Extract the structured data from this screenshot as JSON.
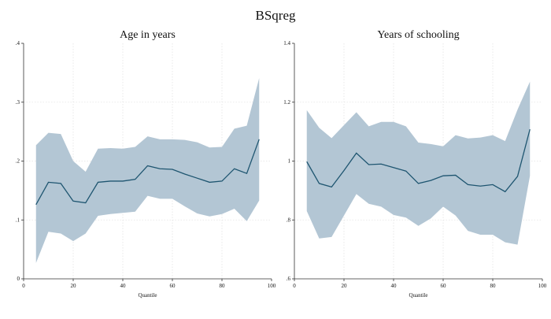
{
  "figure": {
    "title": "BSqreg"
  },
  "chart_data": [
    {
      "type": "area",
      "title": "Age in years",
      "xlabel": "Quantile",
      "ylabel": "",
      "xlim": [
        0,
        100
      ],
      "ylim": [
        0,
        0.4
      ],
      "xticks": [
        0,
        20,
        40,
        60,
        80,
        100
      ],
      "yticks": [
        0,
        0.1,
        0.2,
        0.3,
        0.4
      ],
      "xtick_labels": [
        "0",
        "20",
        "40",
        "60",
        "80",
        "100"
      ],
      "ytick_labels": [
        "0",
        ".1",
        ".2",
        ".3",
        ".4"
      ],
      "grid": true,
      "band_color": "#b3c6d4",
      "line_color": "#1e5570",
      "x": [
        5,
        10,
        15,
        20,
        25,
        30,
        35,
        40,
        45,
        50,
        55,
        60,
        65,
        70,
        75,
        80,
        85,
        90,
        95
      ],
      "series": [
        {
          "values": [
            0.126,
            0.164,
            0.162,
            0.132,
            0.129,
            0.164,
            0.166,
            0.166,
            0.169,
            0.192,
            0.187,
            0.186,
            0.178,
            0.171,
            0.164,
            0.166,
            0.187,
            0.179,
            0.237
          ]
        }
      ],
      "band_upper": [
        0.227,
        0.248,
        0.246,
        0.2,
        0.182,
        0.221,
        0.222,
        0.221,
        0.224,
        0.242,
        0.237,
        0.237,
        0.236,
        0.232,
        0.223,
        0.224,
        0.255,
        0.26,
        0.341
      ],
      "band_lower": [
        0.027,
        0.08,
        0.077,
        0.064,
        0.077,
        0.107,
        0.11,
        0.112,
        0.114,
        0.141,
        0.136,
        0.136,
        0.123,
        0.111,
        0.106,
        0.11,
        0.119,
        0.098,
        0.133
      ]
    },
    {
      "type": "area",
      "title": "Years of schooling",
      "xlabel": "Quantile",
      "ylabel": "",
      "xlim": [
        0,
        100
      ],
      "ylim": [
        0.6,
        1.4
      ],
      "xticks": [
        0,
        20,
        40,
        60,
        80,
        100
      ],
      "yticks": [
        0.6,
        0.8,
        1.0,
        1.2,
        1.4
      ],
      "xtick_labels": [
        "0",
        "20",
        "40",
        "60",
        "80",
        "100"
      ],
      "ytick_labels": [
        ".6",
        ".8",
        "1",
        "1.2",
        "1.4"
      ],
      "grid": true,
      "band_color": "#b3c6d4",
      "line_color": "#1e5570",
      "x": [
        5,
        10,
        15,
        20,
        25,
        30,
        35,
        40,
        45,
        50,
        55,
        60,
        65,
        70,
        75,
        80,
        85,
        90,
        95
      ],
      "series": [
        {
          "values": [
            0.998,
            0.924,
            0.912,
            0.968,
            1.027,
            0.988,
            0.99,
            0.978,
            0.966,
            0.924,
            0.934,
            0.95,
            0.952,
            0.92,
            0.915,
            0.92,
            0.896,
            0.948,
            1.108
          ]
        }
      ],
      "band_upper": [
        1.173,
        1.113,
        1.078,
        1.122,
        1.166,
        1.118,
        1.133,
        1.133,
        1.118,
        1.063,
        1.058,
        1.05,
        1.088,
        1.077,
        1.08,
        1.088,
        1.068,
        1.175,
        1.27
      ],
      "band_lower": [
        0.83,
        0.737,
        0.742,
        0.815,
        0.888,
        0.855,
        0.845,
        0.817,
        0.808,
        0.78,
        0.805,
        0.845,
        0.815,
        0.763,
        0.75,
        0.75,
        0.724,
        0.716,
        0.95
      ]
    }
  ]
}
